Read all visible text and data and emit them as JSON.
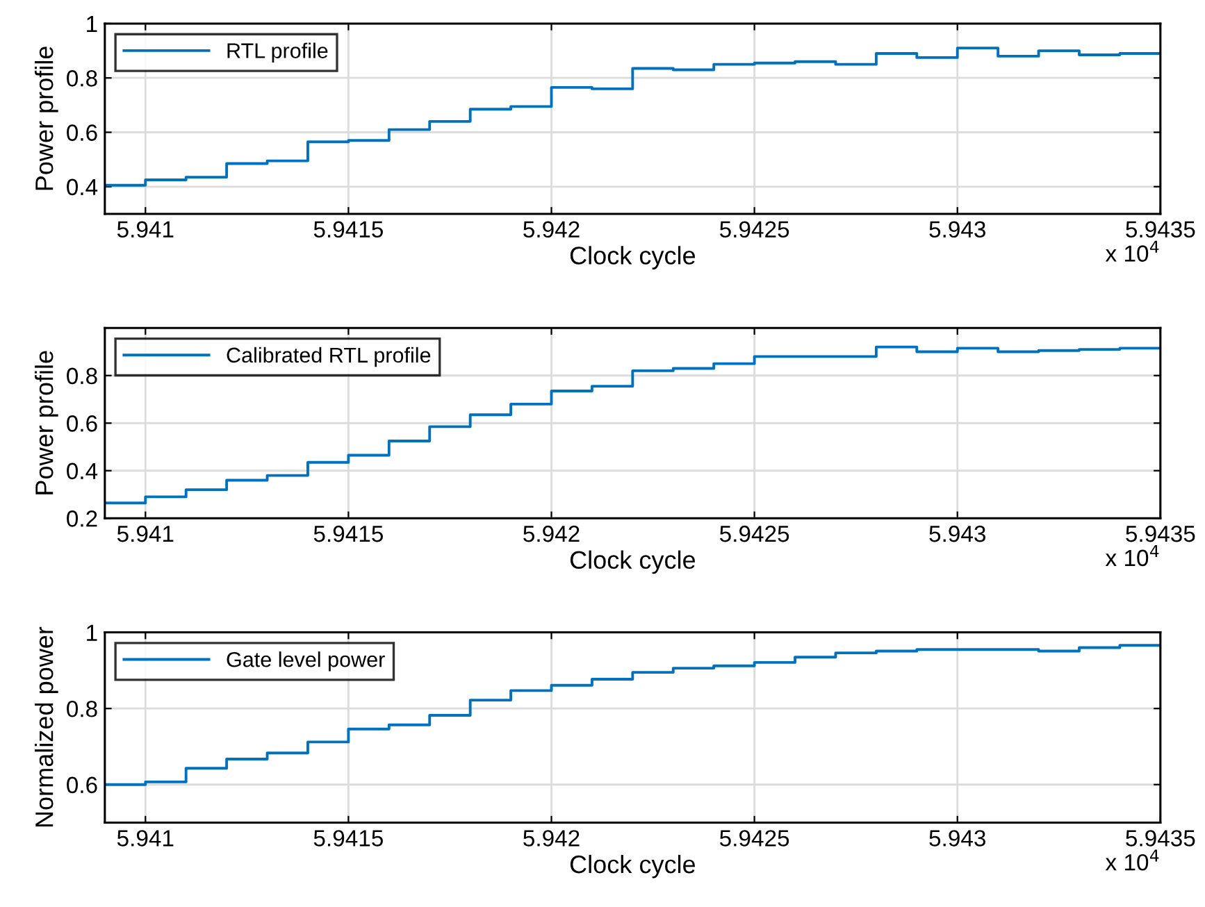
{
  "chart_data": [
    {
      "type": "step",
      "xlabel": "Clock cycle",
      "ylabel": "Power profile",
      "annotations": [
        "x 10$^{4}$"
      ],
      "x": [
        5.9409,
        5.941,
        5.9411,
        5.9412,
        5.9413,
        5.9414,
        5.9415,
        5.9416,
        5.9417,
        5.9418,
        5.9419,
        5.942,
        5.9421,
        5.9422,
        5.9423,
        5.9424,
        5.9425,
        5.9426,
        5.9427,
        5.9428,
        5.9429,
        5.943,
        5.9431,
        5.9432,
        5.9433,
        5.9434,
        5.9435
      ],
      "series": [
        {
          "name": "RTL profile",
          "color": "#0072bd",
          "values": [
            0.405,
            0.425,
            0.435,
            0.485,
            0.495,
            0.565,
            0.57,
            0.61,
            0.64,
            0.685,
            0.695,
            0.765,
            0.76,
            0.835,
            0.83,
            0.85,
            0.855,
            0.86,
            0.85,
            0.89,
            0.875,
            0.91,
            0.88,
            0.9,
            0.885,
            0.89,
            0.89
          ]
        }
      ],
      "xlim": [
        5.9409,
        5.9435
      ],
      "ylim": [
        0.3,
        1
      ],
      "xticks": [
        5.941,
        5.9415,
        5.942,
        5.9425,
        5.943,
        5.9435
      ],
      "yticks": [
        0.4,
        0.6,
        0.8,
        1
      ],
      "grid": true,
      "legend": "top left"
    },
    {
      "type": "step",
      "xlabel": "Clock cycle",
      "ylabel": "Power profile",
      "annotations": [
        "x 10$^{4}$"
      ],
      "x": [
        5.9409,
        5.941,
        5.9411,
        5.9412,
        5.9413,
        5.9414,
        5.9415,
        5.9416,
        5.9417,
        5.9418,
        5.9419,
        5.942,
        5.9421,
        5.9422,
        5.9423,
        5.9424,
        5.9425,
        5.9426,
        5.9427,
        5.9428,
        5.9429,
        5.943,
        5.9431,
        5.9432,
        5.9433,
        5.9434,
        5.9435
      ],
      "series": [
        {
          "name": "Calibrated RTL profile",
          "color": "#0072bd",
          "values": [
            0.264,
            0.29,
            0.32,
            0.36,
            0.38,
            0.435,
            0.465,
            0.525,
            0.585,
            0.635,
            0.68,
            0.735,
            0.755,
            0.82,
            0.83,
            0.85,
            0.88,
            0.88,
            0.88,
            0.92,
            0.9,
            0.915,
            0.9,
            0.905,
            0.91,
            0.915,
            0.915
          ]
        }
      ],
      "xlim": [
        5.9409,
        5.9435
      ],
      "ylim": [
        0.2,
        1
      ],
      "xticks": [
        5.941,
        5.9415,
        5.942,
        5.9425,
        5.943,
        5.9435
      ],
      "yticks": [
        0.2,
        0.4,
        0.6,
        0.8
      ],
      "grid": true,
      "legend": "top left"
    },
    {
      "type": "step",
      "xlabel": "Clock cycle",
      "ylabel": "Normalized power",
      "annotations": [
        "x 10$^{4}$"
      ],
      "x": [
        5.9409,
        5.941,
        5.9411,
        5.9412,
        5.9413,
        5.9414,
        5.9415,
        5.9416,
        5.9417,
        5.9418,
        5.9419,
        5.942,
        5.9421,
        5.9422,
        5.9423,
        5.9424,
        5.9425,
        5.9426,
        5.9427,
        5.9428,
        5.9429,
        5.943,
        5.9431,
        5.9432,
        5.9433,
        5.9434,
        5.9435
      ],
      "series": [
        {
          "name": "Gate level power",
          "color": "#0072bd",
          "values": [
            0.6,
            0.607,
            0.643,
            0.667,
            0.683,
            0.712,
            0.746,
            0.757,
            0.782,
            0.822,
            0.847,
            0.861,
            0.877,
            0.895,
            0.906,
            0.912,
            0.921,
            0.935,
            0.946,
            0.951,
            0.955,
            0.955,
            0.955,
            0.951,
            0.96,
            0.966,
            0.966
          ]
        }
      ],
      "xlim": [
        5.9409,
        5.9435
      ],
      "ylim": [
        0.5,
        1
      ],
      "xticks": [
        5.941,
        5.9415,
        5.942,
        5.9425,
        5.943,
        5.9435
      ],
      "yticks": [
        0.6,
        0.8,
        1
      ],
      "grid": true,
      "legend": "top left"
    }
  ]
}
